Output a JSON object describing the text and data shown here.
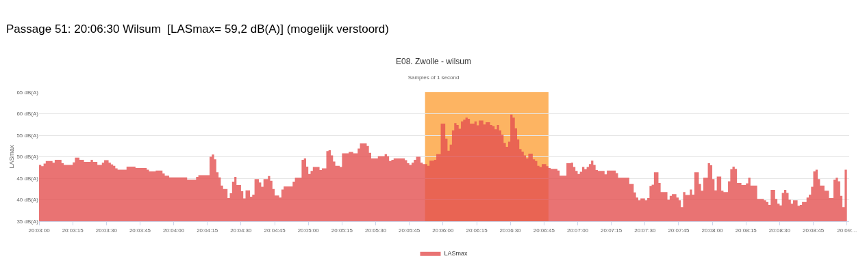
{
  "chart_data": {
    "type": "area",
    "title": "E08. Zwolle - wilsum",
    "subtitle": "Samples of 1 second",
    "ylabel": "LASmax",
    "annotations": [
      "Passage 51: 20:06:30 Wilsum  [LASmax= 59,2 dB(A)] (mogelijk verstoord)"
    ],
    "series": [
      {
        "name": "LASmax",
        "color": "#e45050",
        "x": [
          20.05,
          20.05028,
          20.05056,
          20.05083,
          20.05167,
          20.05194,
          20.05278,
          20.05306,
          20.05417,
          20.05444,
          20.055,
          20.05556,
          20.05639,
          20.05667,
          20.05722,
          20.05778,
          20.05806,
          20.05861,
          20.05889,
          20.05917,
          20.05944,
          20.05972,
          20.06083,
          20.06194,
          20.06333,
          20.06361,
          20.06444,
          20.06528,
          20.06556,
          20.06611,
          20.06833,
          20.06944,
          20.06972,
          20.07111,
          20.07139,
          20.07167,
          20.07194,
          20.07222,
          20.0725,
          20.07278,
          20.07333,
          20.07361,
          20.07389,
          20.07417,
          20.07444,
          20.075,
          20.07528,
          20.07556,
          20.07611,
          20.07639,
          20.07667,
          20.07722,
          20.0775,
          20.07778,
          20.07833,
          20.07861,
          20.07889,
          20.07917,
          20.07972,
          20.08,
          20.08028,
          20.08139,
          20.08167,
          20.0825,
          20.08278,
          20.08306,
          20.08333,
          20.08361,
          20.08389,
          20.08472,
          20.085,
          20.08556,
          20.08583,
          20.08611,
          20.08639,
          20.08667,
          20.08722,
          20.0875,
          20.08833,
          20.08889,
          20.08944,
          20.08972,
          20.09056,
          20.09083,
          20.09111,
          20.09194,
          20.09278,
          20.09306,
          20.09333,
          20.09361,
          20.09389,
          20.09528,
          20.09556,
          20.09583,
          20.09611,
          20.09639,
          20.09667,
          20.09722,
          20.0975,
          20.09806,
          20.09833,
          20.09889,
          20.09917,
          20.09972,
          20.10028,
          20.10056,
          20.10083,
          20.10111,
          20.10139,
          20.10167,
          20.10194,
          20.10222,
          20.1025,
          20.10278,
          20.10306,
          20.10333,
          20.10389,
          20.10417,
          20.10444,
          20.105,
          20.10528,
          20.10583,
          20.10611,
          20.10639,
          20.10667,
          20.10694,
          20.10722,
          20.1075,
          20.10778,
          20.10806,
          20.10833,
          20.10861,
          20.10889,
          20.10917,
          20.10944,
          20.10972,
          20.11,
          20.11028,
          20.11056,
          20.11111,
          20.11139,
          20.11167,
          20.11194,
          20.11222,
          20.11278,
          20.11306,
          20.11333,
          20.11417,
          20.11444,
          20.11528,
          20.11583,
          20.11611,
          20.11639,
          20.11667,
          20.11694,
          20.11722,
          20.1175,
          20.11778,
          20.11806,
          20.11833,
          20.11861,
          20.11889,
          20.11917,
          20.12,
          20.12028,
          20.12139,
          20.12167,
          20.12306,
          20.12361,
          20.12389,
          20.12417,
          20.12444,
          20.125,
          20.12528,
          20.12556,
          20.12583,
          20.12611,
          20.12667,
          20.12694,
          20.12778,
          20.12806,
          20.12833,
          20.12889,
          20.12917,
          20.12944,
          20.12972,
          20.13,
          20.13056,
          20.13083,
          20.13111,
          20.13167,
          20.13194,
          20.13222,
          20.13278,
          20.13306,
          20.13333,
          20.13361,
          20.13389,
          20.13444,
          20.13472,
          20.13528,
          20.13556,
          20.13583,
          20.13611,
          20.13639,
          20.13694,
          20.1375,
          20.13778,
          20.13806,
          20.13889,
          20.13972,
          20.14,
          20.14028,
          20.14056,
          20.14111,
          20.14139,
          20.14167,
          20.14194,
          20.14222,
          20.1425,
          20.14278,
          20.14306,
          20.14333,
          20.14389,
          20.14417,
          20.14444,
          20.145,
          20.14528,
          20.14556,
          20.14583,
          20.14611,
          20.14639,
          20.14667,
          20.14722,
          20.14778,
          20.14833,
          20.14861,
          20.14889,
          20.14917,
          20.14944,
          20.14972,
          20.15
        ],
        "values": [
          48.1,
          47.8,
          48.4,
          49.0,
          48.6,
          49.3,
          48.5,
          48.1,
          48.7,
          49.8,
          49.3,
          48.8,
          49.3,
          48.8,
          48.1,
          48.6,
          49.2,
          48.6,
          48.2,
          47.9,
          47.3,
          47.0,
          47.7,
          47.4,
          47.0,
          46.6,
          46.8,
          46.1,
          45.6,
          45.2,
          44.7,
          45.3,
          45.7,
          50.0,
          50.5,
          49.4,
          46.4,
          45.2,
          43.3,
          42.5,
          40.4,
          41.5,
          44.2,
          45.3,
          43.4,
          42.0,
          40.3,
          42.2,
          40.7,
          41.2,
          44.8,
          44.0,
          43.0,
          44.8,
          45.5,
          44.4,
          42.5,
          41.0,
          40.5,
          42.4,
          43.1,
          44.2,
          45.1,
          49.3,
          49.6,
          47.7,
          46.0,
          46.7,
          47.6,
          46.9,
          47.3,
          51.3,
          51.5,
          50.3,
          48.9,
          47.9,
          47.6,
          50.8,
          51.1,
          50.8,
          51.9,
          53.1,
          52.5,
          50.9,
          49.6,
          50.1,
          50.6,
          50.1,
          49.0,
          49.3,
          49.6,
          49.2,
          48.5,
          48.1,
          48.6,
          49.3,
          50.0,
          48.6,
          48.3,
          47.9,
          49.1,
          49.3,
          50.6,
          57.7,
          54.2,
          51.4,
          52.8,
          56.1,
          57.8,
          57.4,
          56.5,
          58.2,
          58.6,
          59.1,
          58.8,
          57.7,
          58.2,
          57.3,
          58.4,
          57.5,
          58.0,
          57.4,
          57.1,
          56.4,
          57.4,
          56.1,
          55.1,
          53.2,
          52.3,
          53.5,
          59.8,
          59.1,
          56.6,
          54.0,
          51.8,
          51.2,
          50.3,
          49.6,
          50.7,
          49.4,
          49.0,
          47.9,
          47.6,
          48.3,
          47.8,
          47.4,
          47.2,
          46.8,
          45.6,
          48.5,
          48.6,
          47.6,
          46.7,
          46.0,
          46.5,
          47.6,
          47.1,
          47.6,
          48.3,
          49.1,
          48.1,
          46.9,
          46.7,
          45.9,
          46.8,
          46.2,
          45.1,
          43.7,
          41.7,
          40.5,
          39.9,
          40.3,
          39.9,
          40.4,
          43.2,
          43.5,
          46.4,
          43.9,
          41.8,
          40.0,
          40.9,
          41.3,
          40.5,
          39.9,
          38.3,
          41.8,
          41.1,
          42.4,
          41.2,
          46.4,
          43.7,
          42.1,
          45.1,
          48.5,
          48.0,
          44.8,
          42.2,
          45.4,
          42.1,
          41.8,
          44.3,
          47.1,
          47.7,
          47.2,
          43.9,
          43.4,
          43.8,
          45.1,
          43.3,
          40.2,
          39.9,
          39.5,
          38.8,
          42.3,
          40.2,
          39.1,
          38.7,
          41.6,
          42.3,
          41.6,
          40.0,
          39.1,
          39.9,
          38.6,
          38.8,
          39.5,
          40.5,
          41.2,
          43.0,
          46.6,
          47.0,
          44.8,
          43.3,
          42.1,
          40.4,
          44.7,
          45.1,
          44.3,
          40.9,
          38.3,
          47.0,
          47.5
        ]
      }
    ],
    "bands": [
      {
        "axis": "x",
        "from": 20.09778,
        "to": 20.11306,
        "color": "#fdb462"
      }
    ],
    "xlim": [
      20.05,
      20.15028
    ],
    "xticks": [
      {
        "value": 20.05,
        "label": "20:03:00"
      },
      {
        "value": 20.05417,
        "label": "20:03:15"
      },
      {
        "value": 20.05833,
        "label": "20:03:30"
      },
      {
        "value": 20.0625,
        "label": "20:03:45"
      },
      {
        "value": 20.06667,
        "label": "20:04:00"
      },
      {
        "value": 20.07083,
        "label": "20:04:15"
      },
      {
        "value": 20.075,
        "label": "20:04:30"
      },
      {
        "value": 20.07917,
        "label": "20:04:45"
      },
      {
        "value": 20.08333,
        "label": "20:05:00"
      },
      {
        "value": 20.0875,
        "label": "20:05:15"
      },
      {
        "value": 20.09167,
        "label": "20:05:30"
      },
      {
        "value": 20.09583,
        "label": "20:05:45"
      },
      {
        "value": 20.1,
        "label": "20:06:00"
      },
      {
        "value": 20.10417,
        "label": "20:06:15"
      },
      {
        "value": 20.10833,
        "label": "20:06:30"
      },
      {
        "value": 20.1125,
        "label": "20:06:45"
      },
      {
        "value": 20.11667,
        "label": "20:07:00"
      },
      {
        "value": 20.12083,
        "label": "20:07:15"
      },
      {
        "value": 20.125,
        "label": "20:07:30"
      },
      {
        "value": 20.12917,
        "label": "20:07:45"
      },
      {
        "value": 20.13333,
        "label": "20:08:00"
      },
      {
        "value": 20.1375,
        "label": "20:08:15"
      },
      {
        "value": 20.14167,
        "label": "20:08:30"
      },
      {
        "value": 20.14583,
        "label": "20:08:45"
      },
      {
        "value": 20.15,
        "label": "20:09:..."
      }
    ],
    "ylim": [
      35,
      65
    ],
    "yticks": [
      {
        "value": 35,
        "label": "35 dB(A)"
      },
      {
        "value": 40,
        "label": "40 dB(A)"
      },
      {
        "value": 45,
        "label": "45 dB(A)"
      },
      {
        "value": 50,
        "label": "50 dB(A)"
      },
      {
        "value": 55,
        "label": "55 dB(A)"
      },
      {
        "value": 60,
        "label": "60 dB(A)"
      },
      {
        "value": 65,
        "label": "65 dB(A)"
      }
    ],
    "grid": "y",
    "legend": "bottom"
  }
}
